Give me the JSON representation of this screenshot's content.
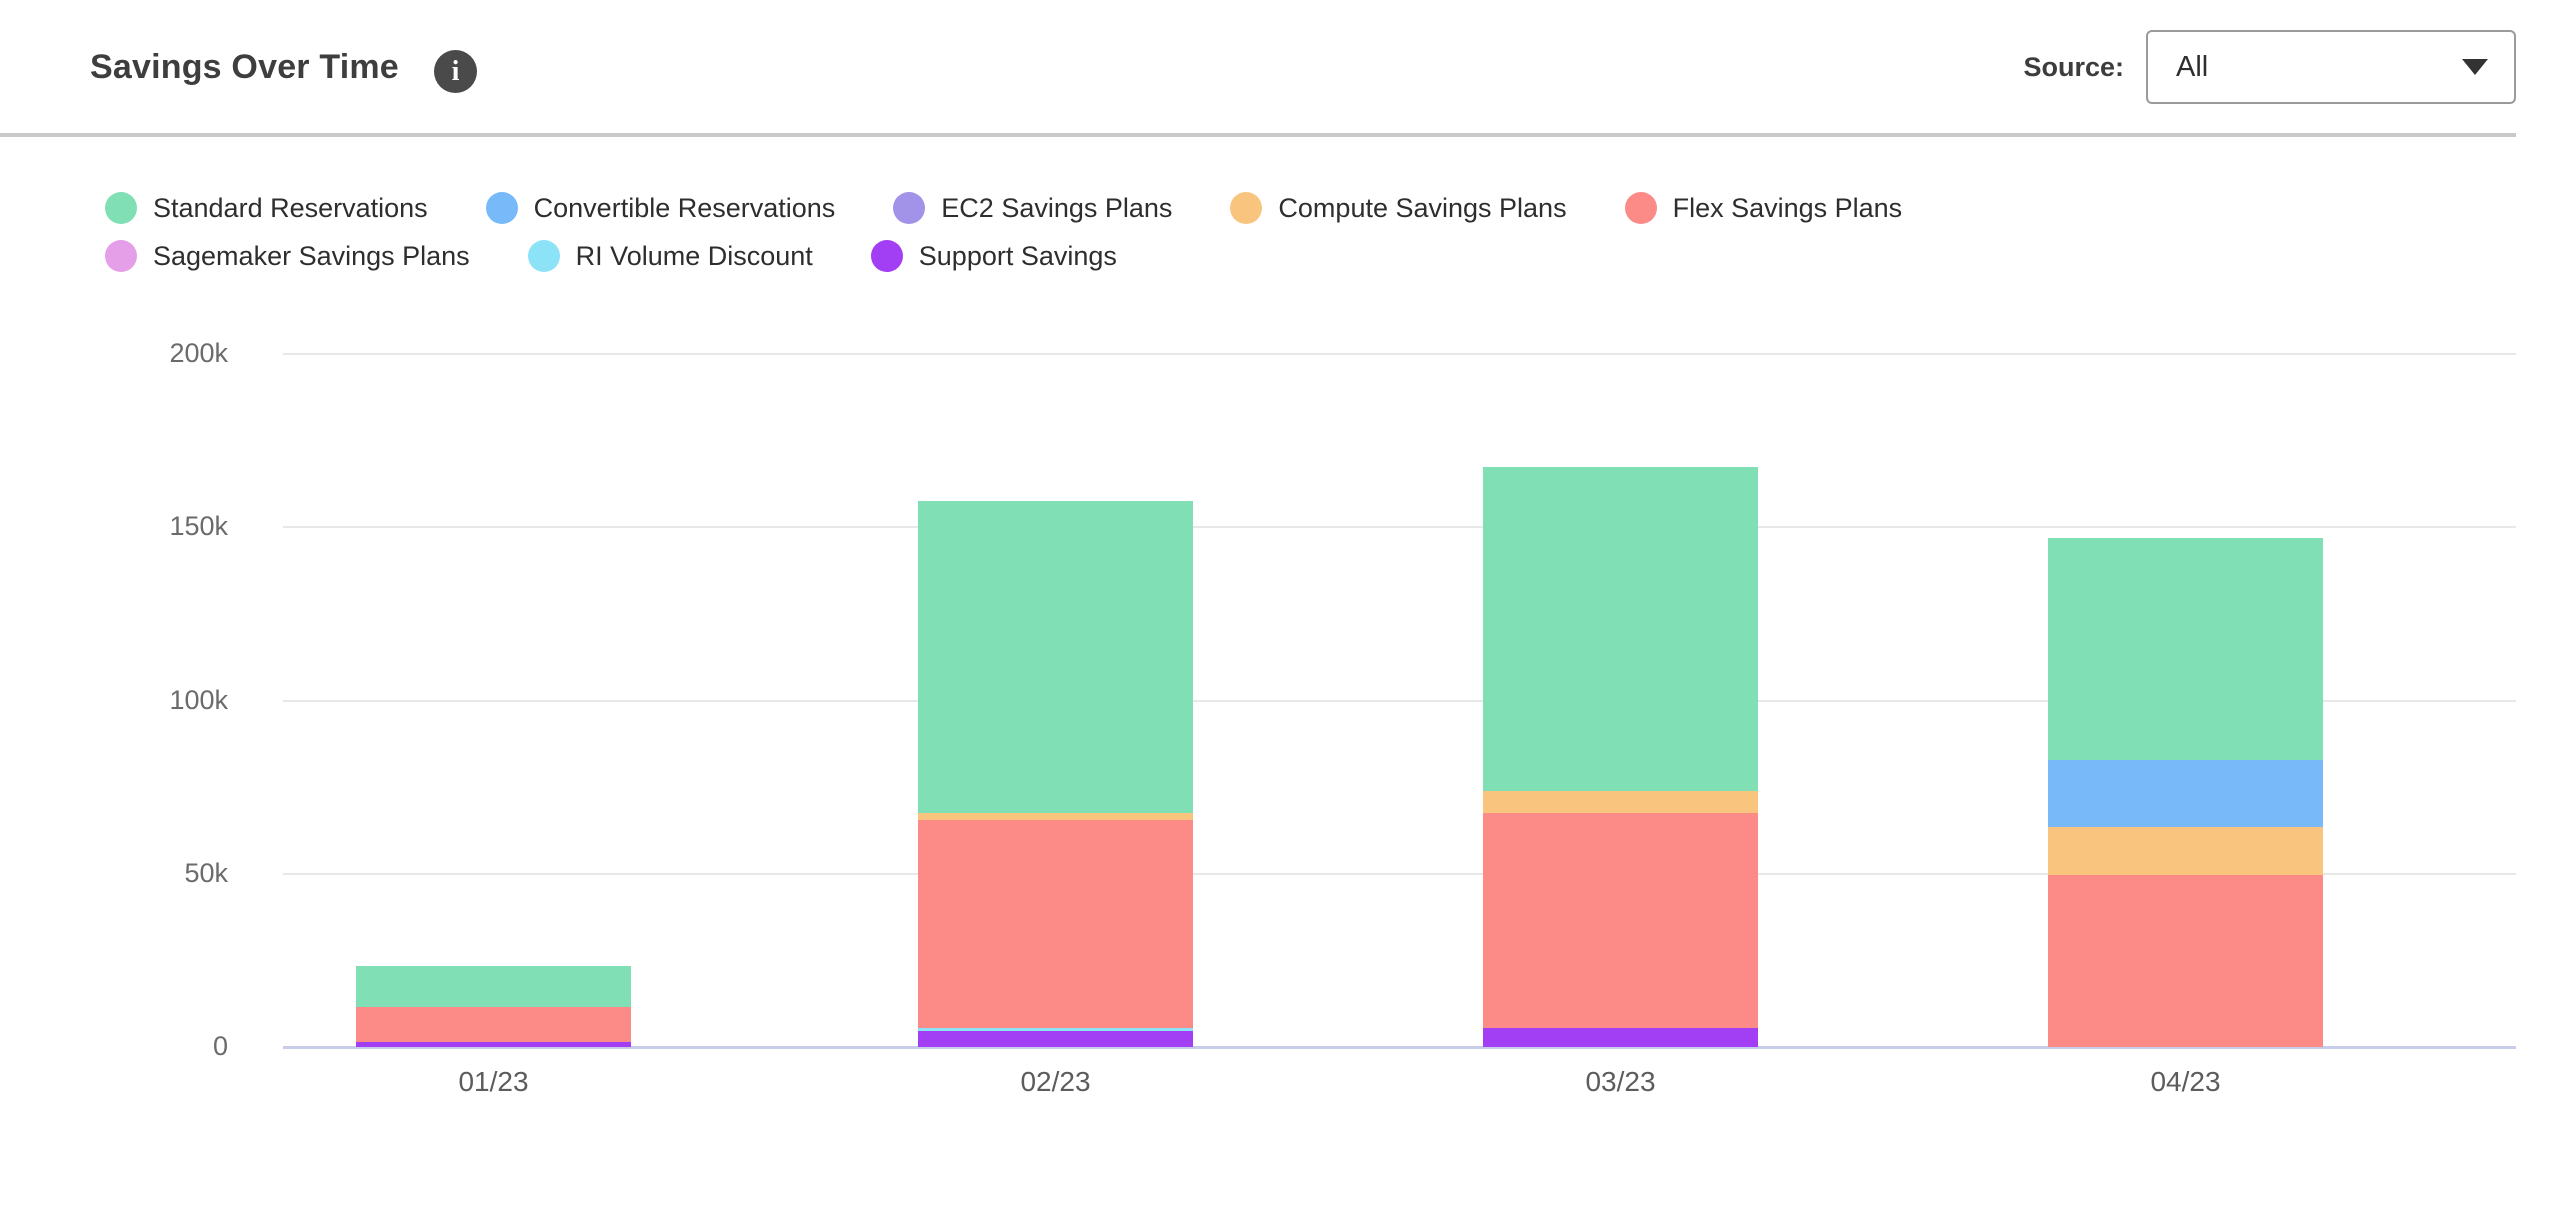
{
  "header": {
    "title": "Savings Over Time",
    "info_icon": "info-circle",
    "source_label": "Source:",
    "source_value": "All"
  },
  "chart_data": {
    "type": "bar",
    "stacked": true,
    "title": "Savings Over Time",
    "categories": [
      "01/23",
      "02/23",
      "03/23",
      "04/23"
    ],
    "series": [
      {
        "name": "Standard Reservations",
        "color": "#80DFB4",
        "values": [
          12000,
          90000,
          93500,
          64300
        ]
      },
      {
        "name": "Convertible Reservations",
        "color": "#77B9F9",
        "values": [
          0,
          0,
          0,
          19300
        ]
      },
      {
        "name": "EC2 Savings Plans",
        "color": "#A293E8",
        "values": [
          0,
          0,
          0,
          0
        ]
      },
      {
        "name": "Compute Savings Plans",
        "color": "#F9C57E",
        "values": [
          0,
          2000,
          6500,
          13700
        ]
      },
      {
        "name": "Flex Savings Plans",
        "color": "#FC8A87",
        "values": [
          10000,
          60000,
          62000,
          49700
        ]
      },
      {
        "name": "Sagemaker Savings Plans",
        "color": "#E49FE8",
        "values": [
          0,
          0,
          0,
          0
        ]
      },
      {
        "name": "RI Volume Discount",
        "color": "#8CE3F7",
        "values": [
          0,
          1000,
          0,
          0
        ]
      },
      {
        "name": "Support Savings",
        "color": "#A23EF4",
        "values": [
          1400,
          4500,
          5400,
          0
        ]
      }
    ],
    "stack_order": "reverse-legend",
    "totals": [
      23400,
      157500,
      167400,
      147000
    ],
    "y_ticks": [
      {
        "label": "0",
        "value": 0
      },
      {
        "label": "50k",
        "value": 50000
      },
      {
        "label": "100k",
        "value": 100000
      },
      {
        "label": "150k",
        "value": 150000
      },
      {
        "label": "200k",
        "value": 200000
      }
    ],
    "ylim": [
      0,
      200000
    ],
    "grid": true,
    "legend_position": "top",
    "legend_rows": [
      5,
      3
    ],
    "axis_colors": {
      "gridline": "#e8e8e8",
      "baseline": "#c7cde9"
    }
  }
}
